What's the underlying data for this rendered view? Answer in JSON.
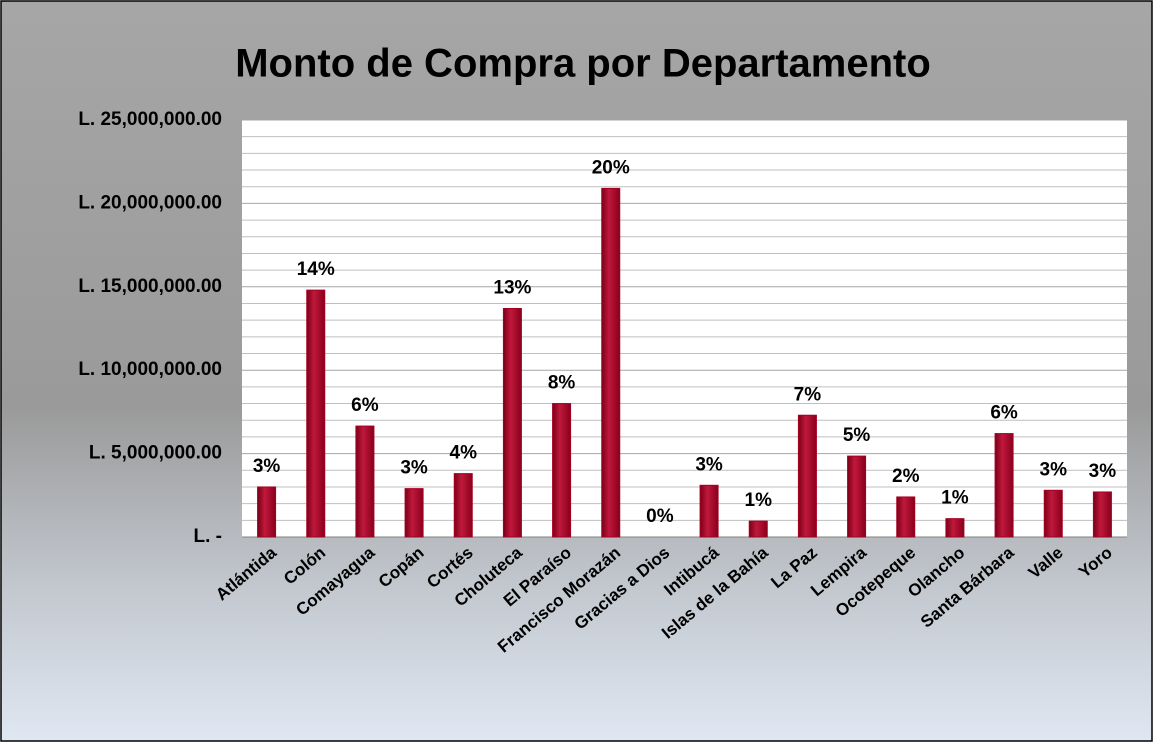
{
  "chart_data": {
    "type": "bar",
    "title": "Monto de Compra por Departamento",
    "categories": [
      "Atlántida",
      "Colón",
      "Comayagua",
      "Copán",
      "Cortés",
      "Choluteca",
      "El Paraíso",
      "Francisco Morazán",
      "Gracias a Dios",
      "Intibucá",
      "Islas de la Bahía",
      "La Paz",
      "Lempira",
      "Ocotepeque",
      "Olancho",
      "Santa Bárbara",
      "Valle",
      "Yoro"
    ],
    "values": [
      3000000,
      14800000,
      6650000,
      2900000,
      3800000,
      13700000,
      8000000,
      20900000,
      0,
      3100000,
      950000,
      7300000,
      4850000,
      2400000,
      1100000,
      6200000,
      2800000,
      2700000
    ],
    "value_labels": [
      "3%",
      "14%",
      "6%",
      "3%",
      "4%",
      "13%",
      "8%",
      "20%",
      "0%",
      "3%",
      "1%",
      "7%",
      "5%",
      "2%",
      "1%",
      "6%",
      "3%",
      "3%"
    ],
    "color": "#a50021",
    "ylim": [
      0,
      25000000
    ],
    "yticks": [
      {
        "value": 0,
        "label": "L. -"
      },
      {
        "value": 5000000,
        "label": "L. 5,000,000.00"
      },
      {
        "value": 10000000,
        "label": "L. 10,000,000.00"
      },
      {
        "value": 15000000,
        "label": "L. 15,000,000.00"
      },
      {
        "value": 20000000,
        "label": "L. 20,000,000.00"
      },
      {
        "value": 25000000,
        "label": "L. 25,000,000.00"
      }
    ],
    "grid": true
  }
}
